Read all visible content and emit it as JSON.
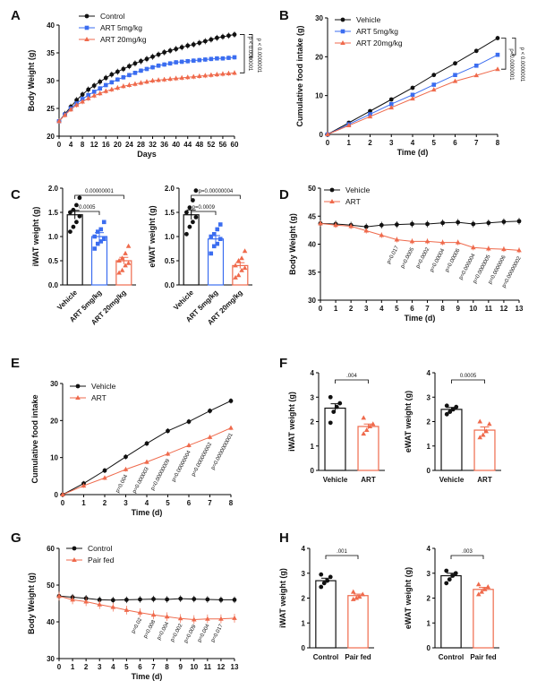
{
  "colors": {
    "control": "#111111",
    "low": "#3b6df0",
    "high": "#ef6a4c"
  },
  "panels": [
    {
      "label": "A",
      "title": "",
      "chart_data": {
        "type": "line",
        "xlabel": "Days",
        "ylabel": "Body Weight (g)",
        "xlim": [
          0,
          60
        ],
        "ylim": [
          20,
          40
        ],
        "xticks": [
          0,
          4,
          8,
          12,
          16,
          20,
          24,
          28,
          32,
          36,
          40,
          44,
          48,
          52,
          56,
          60
        ],
        "yticks": [
          20,
          25,
          30,
          35,
          40
        ],
        "legend": [
          "Control",
          "ART 5mg/kg",
          "ART 20mg/kg"
        ],
        "pvalues": [
          "p < 0.0000001",
          "p < 0.0000001"
        ],
        "x": [
          0,
          2,
          4,
          6,
          8,
          10,
          12,
          14,
          16,
          18,
          20,
          22,
          24,
          26,
          28,
          30,
          32,
          34,
          36,
          38,
          40,
          42,
          44,
          46,
          48,
          50,
          52,
          54,
          56,
          58,
          60
        ],
        "series": [
          {
            "name": "Control",
            "values": [
              22.7,
              24,
              25.3,
              26.5,
              27.5,
              28.4,
              29.1,
              29.8,
              30.5,
              31.1,
              31.6,
              32.1,
              32.6,
              33.1,
              33.5,
              33.9,
              34.3,
              34.7,
              35.1,
              35.4,
              35.7,
              36,
              36.3,
              36.5,
              36.8,
              37.1,
              37.4,
              37.7,
              37.9,
              38.1,
              38.3
            ]
          },
          {
            "name": "ART 5mg/kg",
            "values": [
              22.7,
              23.9,
              25,
              25.9,
              26.7,
              27.4,
              28,
              28.6,
              29.2,
              29.7,
              30.2,
              30.6,
              31,
              31.4,
              31.8,
              32.1,
              32.4,
              32.7,
              32.9,
              33.1,
              33.3,
              33.4,
              33.5,
              33.6,
              33.7,
              33.8,
              33.9,
              34,
              34,
              34.1,
              34.2
            ]
          },
          {
            "name": "ART 20mg/kg",
            "values": [
              22.7,
              23.8,
              24.8,
              25.6,
              26.2,
              26.8,
              27.3,
              27.7,
              28.1,
              28.4,
              28.7,
              29,
              29.2,
              29.4,
              29.6,
              29.8,
              30,
              30.1,
              30.2,
              30.3,
              30.4,
              30.5,
              30.6,
              30.7,
              30.8,
              30.9,
              31,
              31.1,
              31.2,
              31.3,
              31.4
            ]
          }
        ]
      }
    },
    {
      "label": "B",
      "title": "",
      "chart_data": {
        "type": "line",
        "xlabel": "Time (d)",
        "ylabel": "Cumulative food intake (g)",
        "xlim": [
          0,
          8
        ],
        "ylim": [
          0,
          30
        ],
        "xticks": [
          0,
          1,
          2,
          3,
          4,
          5,
          6,
          7,
          8
        ],
        "yticks": [
          0,
          10,
          20,
          30
        ],
        "legend": [
          "Vehicle",
          "ART 5mg/kg",
          "ART 20mg/kg"
        ],
        "pvalues": [
          "p<0.0000001",
          "p < 0.0000001"
        ],
        "x": [
          0,
          1,
          2,
          3,
          4,
          5,
          6,
          7,
          8
        ],
        "series": [
          {
            "name": "Vehicle",
            "values": [
              0,
              3,
              6,
              9,
              12,
              15.3,
              18.3,
              21.5,
              24.8
            ]
          },
          {
            "name": "ART 5mg/kg",
            "values": [
              0,
              2.6,
              5.2,
              7.8,
              10.2,
              12.8,
              15.3,
              17.7,
              20.5
            ]
          },
          {
            "name": "ART 20mg/kg",
            "values": [
              0,
              2.3,
              4.6,
              6.9,
              9.2,
              11.5,
              13.7,
              15.2,
              16.8
            ]
          }
        ]
      }
    },
    {
      "label": "C",
      "title": "",
      "chart_data": [
        {
          "type": "bar",
          "ylabel": "iWAT weight (g)",
          "ylim": [
            0,
            2.0
          ],
          "yticks": [
            0.0,
            0.5,
            1.0,
            1.5,
            2.0
          ],
          "categories": [
            "Vehicle",
            "ART 5mg/kg",
            "ART 20mg/kg"
          ],
          "values": [
            1.45,
            1.0,
            0.5
          ],
          "errors": [
            0.09,
            0.08,
            0.07
          ],
          "points": [
            [
              1.1,
              1.2,
              1.3,
              1.42,
              1.5,
              1.55,
              1.65,
              1.8
            ],
            [
              0.75,
              0.85,
              0.9,
              0.95,
              1.0,
              1.1,
              1.15,
              1.3
            ],
            [
              0.25,
              0.3,
              0.4,
              0.45,
              0.5,
              0.55,
              0.65,
              0.8
            ]
          ],
          "brackets": [
            {
              "from": 0,
              "to": 1,
              "text": "0.0005"
            },
            {
              "from": 0,
              "to": 2,
              "text": "0.00000001"
            }
          ]
        },
        {
          "type": "bar",
          "ylabel": "eWAT weight (g)",
          "ylim": [
            0,
            2.0
          ],
          "yticks": [
            0.0,
            0.5,
            1.0,
            1.5,
            2.0
          ],
          "categories": [
            "Vehicle",
            "ART 5mg/kg",
            "ART 20mg/kg"
          ],
          "values": [
            1.45,
            0.95,
            0.4
          ],
          "errors": [
            0.1,
            0.07,
            0.06
          ],
          "points": [
            [
              1.05,
              1.2,
              1.3,
              1.4,
              1.5,
              1.6,
              1.75,
              1.95
            ],
            [
              0.65,
              0.8,
              0.85,
              0.95,
              1.0,
              1.05,
              1.15,
              1.25
            ],
            [
              0.15,
              0.2,
              0.3,
              0.35,
              0.4,
              0.5,
              0.55,
              0.7
            ]
          ],
          "brackets": [
            {
              "from": 0,
              "to": 1,
              "text": "p=0.0009"
            },
            {
              "from": 0,
              "to": 2,
              "text": "p=0.00000004"
            }
          ]
        }
      ]
    },
    {
      "label": "D",
      "title": "",
      "chart_data": {
        "type": "line",
        "xlabel": "Time (d)",
        "ylabel": "Body Weight (g)",
        "xlim": [
          0,
          13
        ],
        "ylim": [
          30,
          50
        ],
        "xticks": [
          0,
          1,
          2,
          3,
          4,
          5,
          6,
          7,
          8,
          9,
          10,
          11,
          12,
          13
        ],
        "yticks": [
          30,
          35,
          40,
          45,
          50
        ],
        "legend": [
          "Vehicle",
          "ART"
        ],
        "x": [
          0,
          1,
          2,
          3,
          4,
          5,
          6,
          7,
          8,
          9,
          10,
          11,
          12,
          13
        ],
        "series": [
          {
            "name": "Vehicle",
            "values": [
              43.7,
              43.6,
              43.4,
              43.1,
              43.4,
              43.5,
              43.6,
              43.6,
              43.8,
              43.9,
              43.6,
              43.8,
              44,
              44.1
            ]
          },
          {
            "name": "ART",
            "values": [
              43.7,
              43.4,
              43.2,
              42.4,
              41.6,
              40.8,
              40.5,
              40.5,
              40.3,
              40.3,
              39.4,
              39.2,
              39.1,
              38.9
            ]
          }
        ],
        "pvalues": [
          "p=0.017",
          "p=0.0005",
          "p=0.0002",
          "p=0.00004",
          "p=0.00006",
          "p=0.000004",
          "p=0.0000005",
          "p=0.0000006",
          "p=0.00000002"
        ]
      }
    },
    {
      "label": "E",
      "title": "",
      "chart_data": {
        "type": "line",
        "xlabel": "Time (d)",
        "ylabel": "Cumulative food intake",
        "xlim": [
          0,
          8
        ],
        "ylim": [
          0,
          30
        ],
        "xticks": [
          0,
          1,
          2,
          3,
          4,
          5,
          6,
          7,
          8
        ],
        "yticks": [
          0,
          10,
          20,
          30
        ],
        "legend": [
          "Vehicle",
          "ART"
        ],
        "x": [
          0,
          1,
          2,
          3,
          4,
          5,
          6,
          7,
          8
        ],
        "series": [
          {
            "name": "Vehicle",
            "values": [
              0,
              3,
              6.5,
              10.2,
              13.8,
              17.2,
              19.7,
              22.6,
              25.3
            ]
          },
          {
            "name": "ART",
            "values": [
              0,
              2.4,
              4.5,
              6.8,
              8.8,
              11,
              13.3,
              15.5,
              18
            ]
          }
        ],
        "pvalues": [
          "p=0.004",
          "p=0.000003",
          "p=0.00000009",
          "p=0.00000004",
          "p=0.000000002",
          "p=0.0000000001"
        ]
      }
    },
    {
      "label": "F",
      "title": "",
      "chart_data": [
        {
          "type": "bar",
          "ylabel": "iWAT weight (g)",
          "ylim": [
            0,
            4
          ],
          "yticks": [
            0,
            1,
            2,
            3,
            4
          ],
          "categories": [
            "Vehicle",
            "ART"
          ],
          "values": [
            2.55,
            1.8
          ],
          "errors": [
            0.18,
            0.1
          ],
          "points": [
            [
              1.95,
              2.4,
              2.6,
              2.75,
              3.0
            ],
            [
              1.5,
              1.65,
              1.8,
              1.9,
              2.15
            ]
          ],
          "brackets": [
            {
              "from": 0,
              "to": 1,
              "text": ".004"
            }
          ]
        },
        {
          "type": "bar",
          "ylabel": "eWAT weight (g)",
          "ylim": [
            0,
            4
          ],
          "yticks": [
            0,
            1,
            2,
            3,
            4
          ],
          "categories": [
            "Vehicle",
            "ART"
          ],
          "values": [
            2.5,
            1.65
          ],
          "errors": [
            0.08,
            0.13
          ],
          "points": [
            [
              2.3,
              2.4,
              2.5,
              2.6,
              2.65
            ],
            [
              1.35,
              1.45,
              1.6,
              1.9,
              2.0
            ]
          ],
          "brackets": [
            {
              "from": 0,
              "to": 1,
              "text": "0.0005"
            }
          ]
        }
      ]
    },
    {
      "label": "G",
      "title": "",
      "chart_data": {
        "type": "line",
        "xlabel": "Time (d)",
        "ylabel": "Body Weight (g)",
        "xlim": [
          0,
          13
        ],
        "ylim": [
          30,
          60
        ],
        "xticks": [
          0,
          1,
          2,
          3,
          4,
          5,
          6,
          7,
          8,
          9,
          10,
          11,
          12,
          13
        ],
        "yticks": [
          30,
          40,
          50,
          60
        ],
        "legend": [
          "Control",
          "Pair fed"
        ],
        "x": [
          0,
          1,
          2,
          3,
          4,
          5,
          6,
          7,
          8,
          9,
          10,
          11,
          12,
          13
        ],
        "series": [
          {
            "name": "Control",
            "values": [
              47,
              46.7,
              46.4,
              46,
              45.9,
              46,
              46.1,
              46.2,
              46.1,
              46.3,
              46.2,
              46.1,
              46,
              46
            ]
          },
          {
            "name": "Pair fed",
            "values": [
              47,
              46,
              45.5,
              44.7,
              44,
              43.2,
              42.5,
              41.9,
              41.4,
              40.9,
              40.6,
              40.8,
              40.8,
              41
            ]
          }
        ],
        "pvalues": [
          "p=0.02",
          "p=0.008",
          "p=0.004",
          "p=0.002",
          "p=0.009",
          "p=0.004",
          "p=0.017"
        ]
      }
    },
    {
      "label": "H",
      "title": "",
      "chart_data": [
        {
          "type": "bar",
          "ylabel": "iWAT weight (g)",
          "ylim": [
            0,
            4
          ],
          "yticks": [
            0,
            1,
            2,
            3,
            4
          ],
          "categories": [
            "Control",
            "Pair fed"
          ],
          "values": [
            2.7,
            2.1
          ],
          "errors": [
            0.1,
            0.06
          ],
          "points": [
            [
              2.45,
              2.6,
              2.7,
              2.85,
              2.95
            ],
            [
              1.95,
              2.0,
              2.05,
              2.15,
              2.25
            ]
          ],
          "brackets": [
            {
              "from": 0,
              "to": 1,
              "text": ".001"
            }
          ]
        },
        {
          "type": "bar",
          "ylabel": "eWAT weight (g)",
          "ylim": [
            0,
            4
          ],
          "yticks": [
            0,
            1,
            2,
            3,
            4
          ],
          "categories": [
            "Control",
            "Pair fed"
          ],
          "values": [
            2.9,
            2.35
          ],
          "errors": [
            0.1,
            0.08
          ],
          "points": [
            [
              2.6,
              2.75,
              2.9,
              3.0,
              3.1
            ],
            [
              2.15,
              2.25,
              2.35,
              2.45,
              2.55
            ]
          ],
          "brackets": [
            {
              "from": 0,
              "to": 1,
              "text": ".003"
            }
          ]
        }
      ]
    }
  ]
}
